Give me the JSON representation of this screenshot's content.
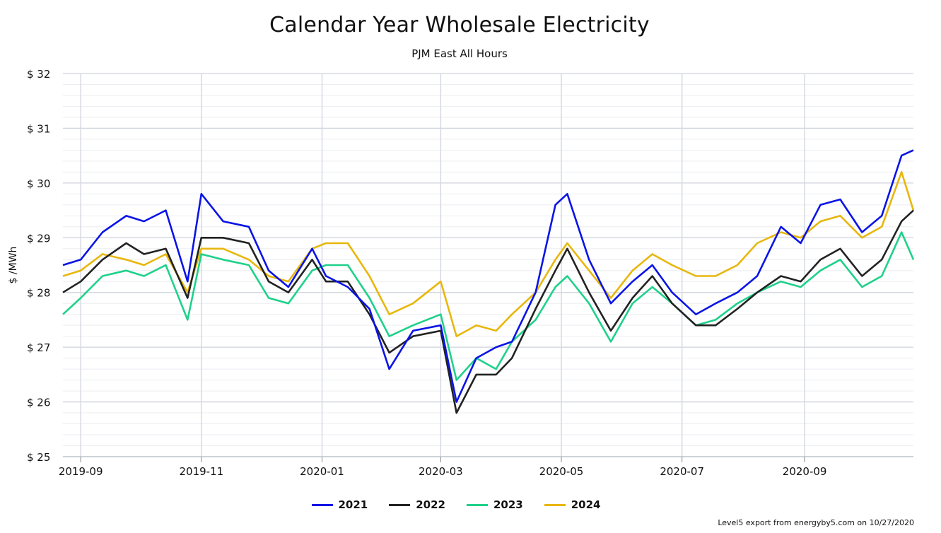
{
  "chart_data": {
    "type": "line",
    "title": "Calendar Year Wholesale Electricity",
    "subtitle": "PJM East All Hours",
    "ylabel": "$ /MWh",
    "xlabel": "",
    "ylim": [
      25,
      32
    ],
    "y_ticks": [
      25,
      26,
      27,
      28,
      29,
      30,
      31,
      32
    ],
    "y_tick_labels": [
      "$ 25",
      "$ 26",
      "$ 27",
      "$ 28",
      "$ 29",
      "$ 30",
      "$ 31",
      "$ 32"
    ],
    "x_range": [
      "2019-08-23",
      "2020-10-26"
    ],
    "x_ticks": [
      "2019-09-01",
      "2019-11-01",
      "2020-01-01",
      "2020-03-01",
      "2020-05-01",
      "2020-07-01",
      "2020-09-01"
    ],
    "x_tick_labels": [
      "2019-09",
      "2019-11",
      "2020-01",
      "2020-03",
      "2020-05",
      "2020-07",
      "2020-09"
    ],
    "grid": true,
    "legend_position": "bottom-center",
    "x": [
      "2019-08-23",
      "2019-09-01",
      "2019-09-12",
      "2019-09-24",
      "2019-10-03",
      "2019-10-14",
      "2019-10-25",
      "2019-11-01",
      "2019-11-12",
      "2019-11-25",
      "2019-12-05",
      "2019-12-15",
      "2019-12-27",
      "2020-01-03",
      "2020-01-14",
      "2020-01-25",
      "2020-02-04",
      "2020-02-16",
      "2020-03-01",
      "2020-03-09",
      "2020-03-19",
      "2020-03-29",
      "2020-04-06",
      "2020-04-18",
      "2020-04-28",
      "2020-05-04",
      "2020-05-15",
      "2020-05-26",
      "2020-06-06",
      "2020-06-16",
      "2020-06-26",
      "2020-07-08",
      "2020-07-18",
      "2020-07-29",
      "2020-08-08",
      "2020-08-20",
      "2020-08-30",
      "2020-09-09",
      "2020-09-19",
      "2020-09-30",
      "2020-10-10",
      "2020-10-20",
      "2020-10-26"
    ],
    "series": [
      {
        "name": "2021",
        "color": "#0a14e6",
        "values": [
          28.5,
          28.6,
          29.1,
          29.4,
          29.3,
          29.5,
          28.2,
          29.8,
          29.3,
          29.2,
          28.4,
          28.1,
          28.8,
          28.3,
          28.1,
          27.7,
          26.6,
          27.3,
          27.4,
          26.0,
          26.8,
          27.0,
          27.1,
          28.0,
          29.6,
          29.8,
          28.6,
          27.8,
          28.2,
          28.5,
          28.0,
          27.6,
          27.8,
          28.0,
          28.3,
          29.2,
          28.9,
          29.6,
          29.7,
          29.1,
          29.4,
          30.5,
          30.6
        ]
      },
      {
        "name": "2022",
        "color": "#222222",
        "values": [
          28.0,
          28.2,
          28.6,
          28.9,
          28.7,
          28.8,
          27.9,
          29.0,
          29.0,
          28.9,
          28.2,
          28.0,
          28.6,
          28.2,
          28.2,
          27.6,
          26.9,
          27.2,
          27.3,
          25.8,
          26.5,
          26.5,
          26.8,
          27.7,
          28.4,
          28.8,
          28.0,
          27.3,
          27.9,
          28.3,
          27.8,
          27.4,
          27.4,
          27.7,
          28.0,
          28.3,
          28.2,
          28.6,
          28.8,
          28.3,
          28.6,
          29.3,
          29.5
        ]
      },
      {
        "name": "2023",
        "color": "#1fd18a",
        "values": [
          27.6,
          27.9,
          28.3,
          28.4,
          28.3,
          28.5,
          27.5,
          28.7,
          28.6,
          28.5,
          27.9,
          27.8,
          28.4,
          28.5,
          28.5,
          27.9,
          27.2,
          27.4,
          27.6,
          26.4,
          26.8,
          26.6,
          27.1,
          27.5,
          28.1,
          28.3,
          27.8,
          27.1,
          27.8,
          28.1,
          27.8,
          27.4,
          27.5,
          27.8,
          28.0,
          28.2,
          28.1,
          28.4,
          28.6,
          28.1,
          28.3,
          29.1,
          28.6
        ]
      },
      {
        "name": "2024",
        "color": "#e8b70c",
        "values": [
          28.3,
          28.4,
          28.7,
          28.6,
          28.5,
          28.7,
          28.0,
          28.8,
          28.8,
          28.6,
          28.3,
          28.2,
          28.8,
          28.9,
          28.9,
          28.3,
          27.6,
          27.8,
          28.2,
          27.2,
          27.4,
          27.3,
          27.6,
          28.0,
          28.6,
          28.9,
          28.4,
          27.9,
          28.4,
          28.7,
          28.5,
          28.3,
          28.3,
          28.5,
          28.9,
          29.1,
          29.0,
          29.3,
          29.4,
          29.0,
          29.2,
          30.2,
          29.5
        ]
      }
    ]
  },
  "footer": "Level5 export from energyby5.com on 10/27/2020"
}
